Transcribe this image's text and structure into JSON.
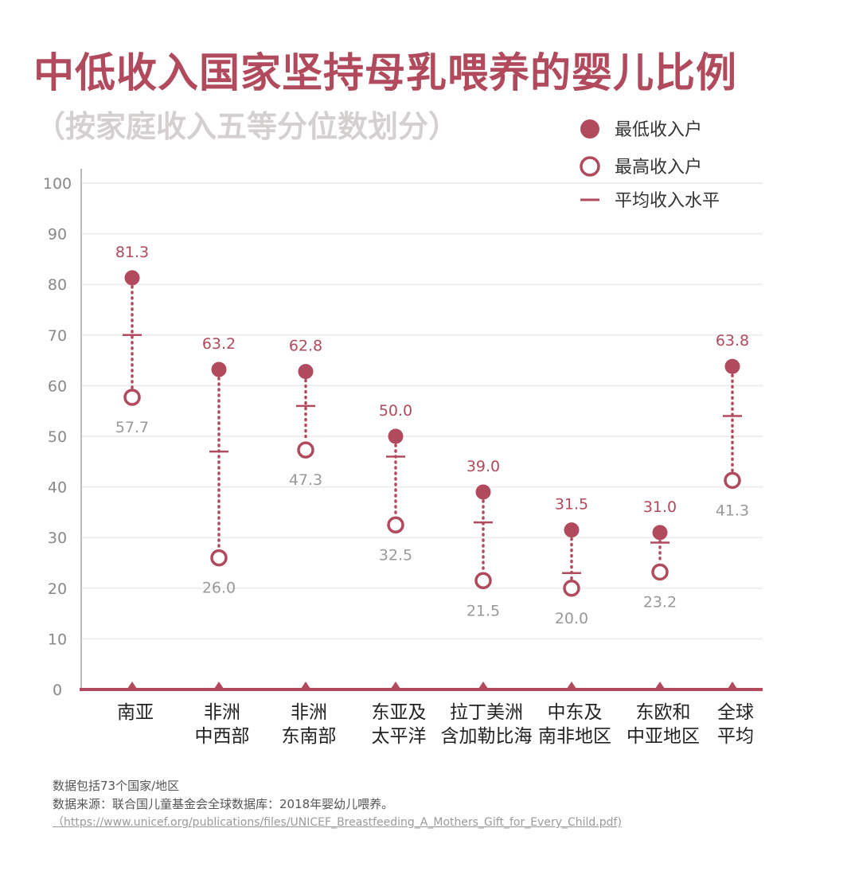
{
  "title": "中低收入国家坚持母乳喂养的婴儿比例",
  "subtitle": "（按家庭收入五等分位数划分）",
  "colors": {
    "accent": "#b04a5c",
    "title": "#b04a5c",
    "subtitle": "#d4d0d0",
    "grid": "#eeeeee",
    "axis_text": "#888888",
    "high_label": "#999999"
  },
  "legend": {
    "placement": "top-right",
    "items": [
      {
        "label": "最低收入户",
        "marker": "filled-circle"
      },
      {
        "label": "最高收入户",
        "marker": "hollow-circle"
      },
      {
        "label": "平均收入水平",
        "marker": "dash"
      }
    ]
  },
  "notes": {
    "line1": "数据包括73个国家/地区",
    "line2": "数据来源：联合国儿童基金会全球数据库：2018年婴幼儿喂养。",
    "line3": "（https://www.unicef.org/publications/files/UNICEF_Breastfeeding_A_Mothers_Gift_for_Every_Child.pdf)"
  },
  "chart_data": {
    "type": "dumbbell",
    "ylim": [
      0,
      100
    ],
    "yticks": [
      0,
      10,
      20,
      30,
      40,
      50,
      60,
      70,
      80,
      90,
      100
    ],
    "grid": true,
    "categories": [
      [
        "南亚"
      ],
      [
        "非洲",
        "中西部"
      ],
      [
        "非洲",
        "东南部"
      ],
      [
        "东亚及",
        "太平洋"
      ],
      [
        "拉丁美洲",
        "含加勒比海"
      ],
      [
        "中东及",
        "南非地区"
      ],
      [
        "东欧和",
        "中亚地区"
      ],
      [
        "全球",
        "平均"
      ]
    ],
    "series": [
      {
        "name": "最低收入户",
        "values": [
          81.3,
          63.2,
          62.8,
          50.0,
          39.0,
          31.5,
          31.0,
          63.8
        ]
      },
      {
        "name": "最高收入户",
        "values": [
          57.7,
          26.0,
          47.3,
          32.5,
          21.5,
          20.0,
          23.2,
          41.3
        ]
      },
      {
        "name": "平均收入水平",
        "values": [
          70,
          47,
          56,
          46,
          33,
          23,
          29,
          54
        ]
      }
    ],
    "data_labels": {
      "low": [
        "81.3",
        "63.2",
        "62.8",
        "50.0",
        "39.0",
        "31.5",
        "31.0",
        "63.8"
      ],
      "high": [
        "57.7",
        "26.0",
        "47.3",
        "32.5",
        "21.5",
        "20.0",
        "23.2",
        "41.3"
      ]
    }
  }
}
